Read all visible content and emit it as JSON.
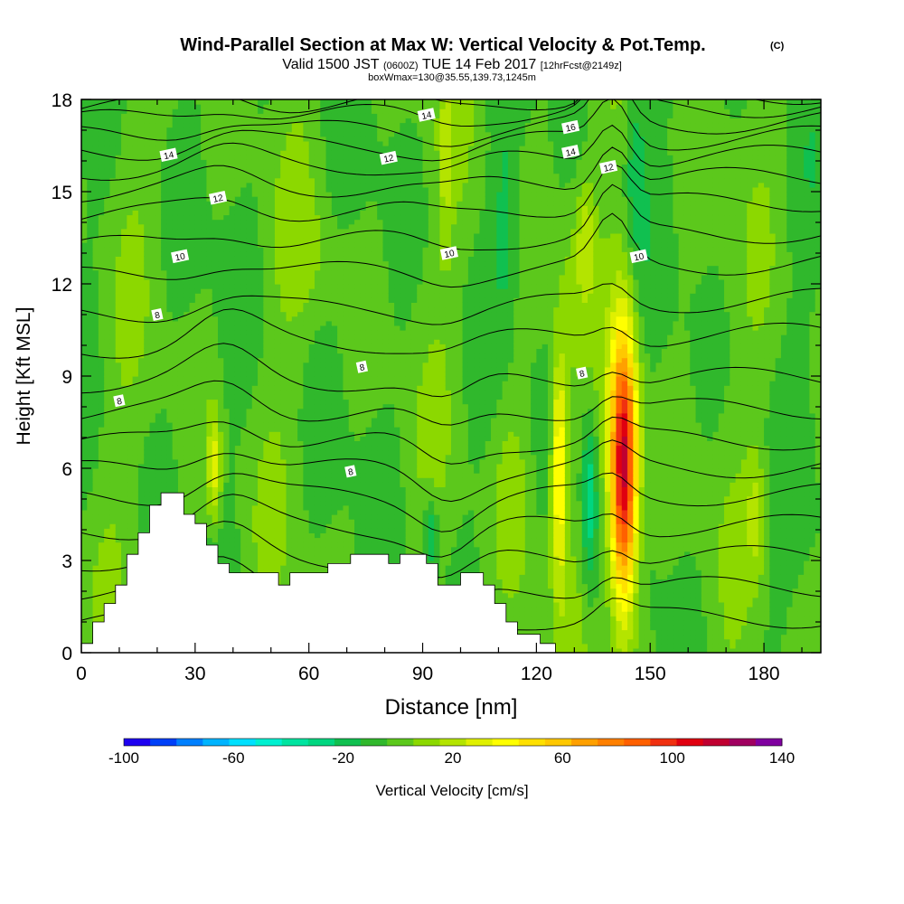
{
  "chart_data": {
    "type": "heatmap",
    "title": "Wind-Parallel Section at Max W: Vertical Velocity & Pot.Temp.",
    "title_mark": "(C)",
    "subtitle": {
      "valid_prefix": "Valid 1500 JST",
      "utc": "(0600Z)",
      "date": "TUE 14 Feb 2017",
      "forecast": "[12hrFcst@2149z]"
    },
    "box_label": "boxWmax=130@35.55,139.73,1245m",
    "xlabel": "Distance [nm]",
    "ylabel": "Height [Kft MSL]",
    "xlim": [
      0,
      195
    ],
    "ylim": [
      0,
      18
    ],
    "x_ticks": [
      0,
      30,
      60,
      90,
      120,
      150,
      180
    ],
    "y_ticks": [
      0,
      3,
      6,
      9,
      12,
      15,
      18
    ],
    "colorbar": {
      "label": "Vertical Velocity [cm/s]",
      "tick_labels": [
        "-100",
        "-60",
        "-20",
        "20",
        "60",
        "100",
        "140"
      ],
      "levels": [
        -100,
        140
      ],
      "step": 10,
      "colors": [
        "#1e00f0",
        "#0040f8",
        "#0080ff",
        "#00b4ff",
        "#00e0ff",
        "#00f0d0",
        "#00e4a0",
        "#00d680",
        "#10c050",
        "#30b82c",
        "#5cc81c",
        "#8cd800",
        "#b4e400",
        "#e0f000",
        "#ffff00",
        "#ffe000",
        "#ffc800",
        "#ffa000",
        "#ff8000",
        "#ff6000",
        "#f03010",
        "#e00010",
        "#c00030",
        "#a00060",
        "#8000a0"
      ]
    },
    "contour_series": "Potential Temperature [C]",
    "contour_labels": [
      {
        "text": "16",
        "x": 129,
        "y": 17.1
      },
      {
        "text": "14",
        "x": 129,
        "y": 16.3
      },
      {
        "text": "14",
        "x": 91,
        "y": 17.5
      },
      {
        "text": "14",
        "x": 23,
        "y": 16.2
      },
      {
        "text": "12",
        "x": 81,
        "y": 16.1
      },
      {
        "text": "12",
        "x": 36,
        "y": 14.8
      },
      {
        "text": "12",
        "x": 139,
        "y": 15.8
      },
      {
        "text": "10",
        "x": 26,
        "y": 12.9
      },
      {
        "text": "10",
        "x": 97,
        "y": 13.0
      },
      {
        "text": "10",
        "x": 147,
        "y": 12.9
      },
      {
        "text": "8",
        "x": 20,
        "y": 11.0
      },
      {
        "text": "8",
        "x": 74,
        "y": 9.3
      },
      {
        "text": "8",
        "x": 132,
        "y": 9.1
      },
      {
        "text": "8",
        "x": 10,
        "y": 8.2
      },
      {
        "text": "8",
        "x": 71,
        "y": 5.9
      }
    ],
    "vertical_velocity_features": [
      {
        "kind": "updraft",
        "x": 143,
        "y": 6.0,
        "peak": 130
      },
      {
        "kind": "updraft",
        "x": 126,
        "y": 6.0,
        "peak": 60
      },
      {
        "kind": "updraft",
        "x": 133,
        "y": 13.5,
        "peak": 25
      },
      {
        "kind": "updraft",
        "x": 35,
        "y": 6.0,
        "peak": 40
      },
      {
        "kind": "updraft",
        "x": 178,
        "y": 4.5,
        "peak": 25
      },
      {
        "kind": "downdraft",
        "x": 134,
        "y": 5.0,
        "peak": -35
      },
      {
        "kind": "downdraft",
        "x": 92,
        "y": 3.8,
        "peak": -30
      }
    ],
    "terrain": [
      [
        0,
        0.3
      ],
      [
        3,
        0.3
      ],
      [
        3,
        1.0
      ],
      [
        6,
        1.0
      ],
      [
        6,
        1.6
      ],
      [
        9,
        1.6
      ],
      [
        9,
        2.2
      ],
      [
        12,
        2.2
      ],
      [
        12,
        3.2
      ],
      [
        15,
        3.2
      ],
      [
        15,
        3.9
      ],
      [
        18,
        3.9
      ],
      [
        18,
        4.8
      ],
      [
        21,
        4.8
      ],
      [
        21,
        5.2
      ],
      [
        27,
        5.2
      ],
      [
        27,
        4.5
      ],
      [
        30,
        4.5
      ],
      [
        30,
        4.2
      ],
      [
        33,
        4.2
      ],
      [
        33,
        3.5
      ],
      [
        36,
        3.5
      ],
      [
        36,
        2.9
      ],
      [
        39,
        2.9
      ],
      [
        39,
        2.6
      ],
      [
        52,
        2.6
      ],
      [
        52,
        2.2
      ],
      [
        55,
        2.2
      ],
      [
        55,
        2.6
      ],
      [
        65,
        2.6
      ],
      [
        65,
        2.9
      ],
      [
        71,
        2.9
      ],
      [
        71,
        3.2
      ],
      [
        81,
        3.2
      ],
      [
        81,
        2.9
      ],
      [
        84,
        2.9
      ],
      [
        84,
        3.2
      ],
      [
        91,
        3.2
      ],
      [
        91,
        2.9
      ],
      [
        94,
        2.9
      ],
      [
        94,
        2.2
      ],
      [
        100,
        2.2
      ],
      [
        100,
        2.6
      ],
      [
        106,
        2.6
      ],
      [
        106,
        2.2
      ],
      [
        109,
        2.2
      ],
      [
        109,
        1.6
      ],
      [
        112,
        1.6
      ],
      [
        112,
        1.0
      ],
      [
        115,
        1.0
      ],
      [
        115,
        0.6
      ],
      [
        121,
        0.6
      ],
      [
        121,
        0.3
      ],
      [
        125,
        0.3
      ],
      [
        125,
        0
      ]
    ]
  }
}
